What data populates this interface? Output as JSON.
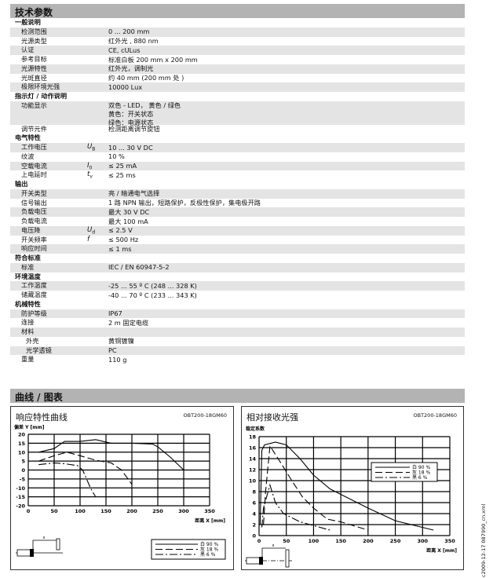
{
  "header": {
    "title": "技术参数"
  },
  "sections": [
    {
      "title": "一般说明",
      "rows": [
        {
          "label": "检测范围",
          "value": "0 ... 200 mm"
        },
        {
          "label": "光源类型",
          "value": "红外光 , 880 nm"
        },
        {
          "label": "认证",
          "value": "CE, cULus"
        },
        {
          "label": "参考目标",
          "value": "标准白板 200 mm x 200 mm"
        },
        {
          "label": "光源特性",
          "value": "红外光，调制光"
        },
        {
          "label": "光斑直径",
          "value": "约  40 mm (200 mm 处 )"
        },
        {
          "label": "极限环境光强",
          "value": "10000 Lux"
        }
      ]
    },
    {
      "title": "指示灯 / 动作说明",
      "rows": [
        {
          "label": "功能显示",
          "value": "双色 - LED， 黄色 / 绿色",
          "value2": "黄色：开关状态",
          "value3": "绿色：电源状态"
        },
        {
          "label": "调节元件",
          "value": "检测距离调节旋钮"
        }
      ]
    },
    {
      "title": "电气特性",
      "rows": [
        {
          "label": "工作电压",
          "sym": "U",
          "sub": "B",
          "value": "10 ... 30 V DC"
        },
        {
          "label": "纹波",
          "value": "10 %"
        },
        {
          "label": "空载电流",
          "sym": "I",
          "sub": "0",
          "value": "≤ 25 mA"
        },
        {
          "label": "上电延时",
          "sym": "t",
          "sub": "v",
          "value": "≤ 25 ms"
        }
      ]
    },
    {
      "title": "输出",
      "rows": [
        {
          "label": "开关类型",
          "value": "亮 / 暗通电气选择"
        },
        {
          "label": "信号输出",
          "value": "1 路 NPN 输出，短路保护，反极性保护，集电极开路"
        },
        {
          "label": "负载电压",
          "value": "最大 30 V DC"
        },
        {
          "label": "负载电流",
          "value": "最大 100 mA"
        },
        {
          "label": "电压降",
          "sym": "U",
          "sub": "d",
          "value": "≤ 2.5 V"
        },
        {
          "label": "开关频率",
          "sym": "f",
          "value": "≤ 500 Hz"
        },
        {
          "label": "响应时间",
          "value": "≤ 1 ms"
        }
      ]
    },
    {
      "title": "符合标准",
      "rows": [
        {
          "label": "标准",
          "value": "IEC / EN 60947-5-2"
        }
      ]
    },
    {
      "title": "环境温度",
      "rows": [
        {
          "label": "工作温度",
          "value": "-25 ... 55 º C (248 ... 328 K)"
        },
        {
          "label": "储藏温度",
          "value": "-40 ... 70 º C (233 ... 343 K)"
        }
      ]
    },
    {
      "title": "机械特性",
      "rows": [
        {
          "label": "防护等级",
          "value": "IP67"
        },
        {
          "label": "连接",
          "value": "2 m 固定电缆"
        },
        {
          "label": "材料",
          "value": ""
        },
        {
          "label": "外壳",
          "value": "黄铜镀镍",
          "indent": true
        },
        {
          "label": "光学透镜",
          "value": "PC",
          "indent": true
        },
        {
          "label": "重量",
          "value": "110 g"
        }
      ]
    }
  ],
  "curves_header": {
    "title": "曲线 / 图表"
  },
  "chart_data": [
    {
      "type": "line",
      "title": "响应特性曲线",
      "model": "OBT200-18GM60",
      "ylabel": "偏差 Y [mm]",
      "xlabel": "距离 X [mm]",
      "xlim": [
        0,
        350
      ],
      "ylim": [
        -20,
        20
      ],
      "xticks": [
        0,
        50,
        100,
        150,
        200,
        250,
        300,
        350
      ],
      "yticks": [
        20,
        15,
        10,
        5,
        0,
        -5,
        -10,
        -15,
        -20
      ],
      "grid": true,
      "legend": "bottom-right",
      "diagram_label": "x",
      "series": [
        {
          "name": "白 90 %",
          "style": "solid",
          "points": [
            [
              20,
              10
            ],
            [
              50,
              12
            ],
            [
              70,
              16
            ],
            [
              100,
              16
            ],
            [
              130,
              17
            ],
            [
              160,
              15
            ],
            [
              200,
              15
            ],
            [
              240,
              14.5
            ],
            [
              250,
              13
            ],
            [
              275,
              7
            ],
            [
              300,
              0
            ]
          ]
        },
        {
          "name": "灰 18 %",
          "style": "dash",
          "points": [
            [
              20,
              5
            ],
            [
              50,
              8
            ],
            [
              75,
              10
            ],
            [
              100,
              8
            ],
            [
              130,
              5.5
            ],
            [
              160,
              4
            ],
            [
              180,
              0
            ],
            [
              200,
              -8
            ]
          ]
        },
        {
          "name": "黑 6 %",
          "style": "dashdot",
          "points": [
            [
              20,
              3
            ],
            [
              50,
              4
            ],
            [
              70,
              3.5
            ],
            [
              95,
              2.5
            ],
            [
              105,
              0
            ],
            [
              120,
              -10
            ],
            [
              130,
              -15
            ]
          ]
        }
      ]
    },
    {
      "type": "line",
      "title": "相对接收光强",
      "model": "OBT200-18GM60",
      "ylabel": "稳定系数",
      "xlabel": "距离 X [mm]",
      "xlim": [
        0,
        350
      ],
      "ylim": [
        0,
        18
      ],
      "xticks": [
        0,
        50,
        100,
        150,
        200,
        250,
        300,
        350
      ],
      "yticks": [
        18,
        16,
        14,
        12,
        10,
        8,
        6,
        4,
        2,
        0
      ],
      "grid": true,
      "legend": "top-right",
      "diagram_label": "x",
      "series": [
        {
          "name": "白 90 %",
          "style": "solid",
          "points": [
            [
              2,
              2
            ],
            [
              5,
              15.5
            ],
            [
              10,
              16.5
            ],
            [
              30,
              17
            ],
            [
              50,
              16.5
            ],
            [
              75,
              14
            ],
            [
              100,
              11
            ],
            [
              130,
              8.5
            ],
            [
              150,
              7.5
            ],
            [
              200,
              5
            ],
            [
              250,
              2.7
            ],
            [
              320,
              1
            ]
          ]
        },
        {
          "name": "灰 18 %",
          "style": "dash",
          "points": [
            [
              8,
              2
            ],
            [
              12,
              8
            ],
            [
              20,
              16.3
            ],
            [
              35,
              14
            ],
            [
              60,
              10
            ],
            [
              80,
              7
            ],
            [
              100,
              5
            ],
            [
              125,
              3
            ],
            [
              150,
              2.5
            ],
            [
              200,
              1
            ]
          ]
        },
        {
          "name": "黑 6 %",
          "style": "dashdot",
          "points": [
            [
              5,
              1.5
            ],
            [
              8,
              5
            ],
            [
              20,
              9.2
            ],
            [
              30,
              6
            ],
            [
              45,
              4
            ],
            [
              75,
              2.5
            ],
            [
              130,
              1
            ]
          ]
        }
      ]
    }
  ],
  "footer": {
    "side_text": "c2009-12-17   087990_cn.xml"
  },
  "colors": {
    "header_bar": "#b3b3b3",
    "row_shade": "#e4e4e4"
  }
}
